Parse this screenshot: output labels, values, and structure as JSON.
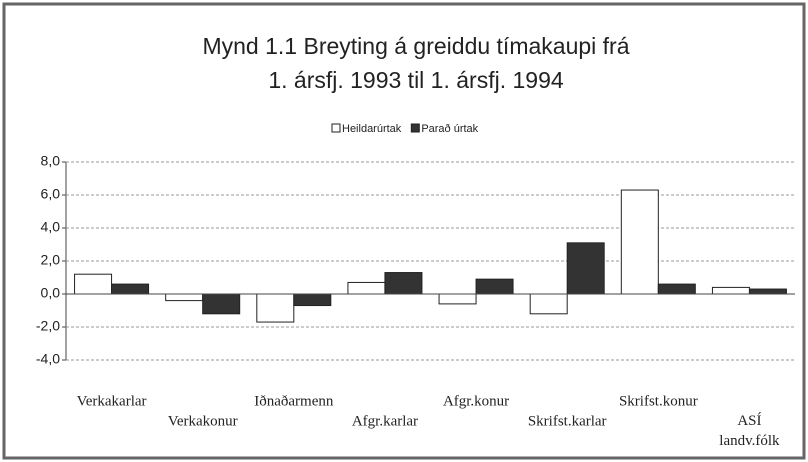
{
  "chart_data": {
    "type": "bar",
    "title": [
      "Mynd 1.1   Breyting á greiddu tímakaupi frá",
      "1. ársfj. 1993 til 1. ársfj. 1994"
    ],
    "categories": [
      "Verkakarlar",
      "Verkakonur",
      "Iðnaðarmenn",
      "Afgr.karlar",
      "Afgr.konur",
      "Skrifst.karlar",
      "Skrifst.konur",
      "ASÍ landv.fólk"
    ],
    "series": [
      {
        "name": "Heildarúrtak",
        "color": "#ffffff",
        "values": [
          1.2,
          -0.4,
          -1.7,
          0.7,
          -0.6,
          -1.2,
          6.3,
          0.4
        ]
      },
      {
        "name": "Parað úrtak",
        "color": "#333333",
        "values": [
          0.6,
          -1.2,
          -0.7,
          1.3,
          0.9,
          3.1,
          0.6,
          0.3
        ]
      }
    ],
    "ylim": [
      -4,
      8
    ],
    "yticks": [
      {
        "value": 8,
        "label": "8,0"
      },
      {
        "value": 6,
        "label": "6,0"
      },
      {
        "value": 4,
        "label": "4,0"
      },
      {
        "value": 2,
        "label": "2,0"
      },
      {
        "value": 0,
        "label": "0,0"
      },
      {
        "value": -2,
        "label": "-2,0"
      },
      {
        "value": -4,
        "label": "-4,0"
      }
    ],
    "grid": true,
    "legend": "top"
  }
}
